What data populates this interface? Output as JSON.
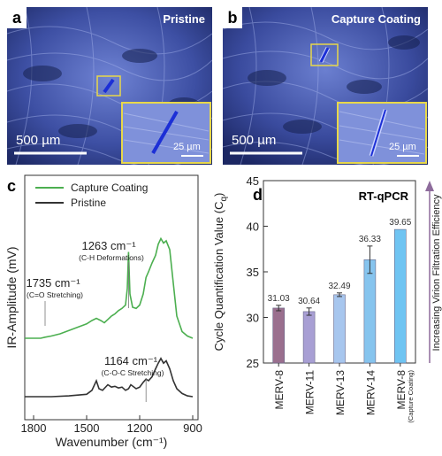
{
  "panel_a": {
    "letter": "a",
    "title": "Pristine",
    "scalebar": "500 µm",
    "inset_scalebar": "25 µm"
  },
  "panel_b": {
    "letter": "b",
    "title": "Capture Coating",
    "scalebar": "500 µm",
    "inset_scalebar": "25 µm"
  },
  "colors": {
    "capture": "#4caf50",
    "pristine": "#333333",
    "micro_bg": "#3d4fa3",
    "inset_border": "#e8d84a",
    "fiber": "#1c2fd6"
  },
  "chart_data": [
    {
      "type": "line",
      "panel": "c",
      "xlabel": "Wavenumber (cm⁻¹)",
      "ylabel": "IR-Amplitude (mV)",
      "xlim": [
        1850,
        870
      ],
      "x_ticks": [
        "1800",
        "1500",
        "1200",
        "900"
      ],
      "legend": [
        "Capture Coating",
        "Pristine"
      ],
      "legend_position": "top-left",
      "annotations": [
        {
          "label": "1263 cm⁻¹",
          "sub": "(C-H Deformations)"
        },
        {
          "label": "1735 cm⁻¹",
          "sub": "(C=O Stretching)"
        },
        {
          "label": "1164 cm⁻¹",
          "sub": "(C-O-C Stretching)"
        }
      ],
      "series": [
        {
          "name": "Capture Coating",
          "x": [
            1850,
            1760,
            1735,
            1700,
            1650,
            1600,
            1550,
            1500,
            1470,
            1445,
            1420,
            1400,
            1380,
            1360,
            1340,
            1320,
            1300,
            1280,
            1270,
            1263,
            1255,
            1240,
            1220,
            1200,
            1180,
            1164,
            1150,
            1130,
            1110,
            1095,
            1080,
            1065,
            1050,
            1030,
            1010,
            990,
            960,
            930,
            900
          ],
          "y": [
            0.0,
            0.0,
            0.01,
            0.02,
            0.04,
            0.07,
            0.1,
            0.13,
            0.16,
            0.18,
            0.16,
            0.14,
            0.17,
            0.2,
            0.22,
            0.25,
            0.27,
            0.3,
            0.45,
            0.78,
            0.4,
            0.28,
            0.27,
            0.3,
            0.4,
            0.55,
            0.6,
            0.68,
            0.75,
            0.85,
            0.9,
            0.86,
            0.88,
            0.8,
            0.5,
            0.2,
            0.06,
            0.02,
            0.0
          ]
        },
        {
          "name": "Pristine",
          "x": [
            1850,
            1800,
            1700,
            1600,
            1500,
            1470,
            1445,
            1430,
            1410,
            1380,
            1360,
            1340,
            1320,
            1300,
            1280,
            1263,
            1250,
            1220,
            1200,
            1180,
            1164,
            1150,
            1130,
            1110,
            1095,
            1080,
            1065,
            1050,
            1030,
            1010,
            990,
            960,
            930,
            900
          ],
          "y": [
            0.0,
            0.0,
            0.0,
            0.01,
            0.03,
            0.08,
            0.2,
            0.1,
            0.08,
            0.15,
            0.12,
            0.13,
            0.11,
            0.12,
            0.08,
            0.1,
            0.15,
            0.1,
            0.12,
            0.18,
            0.22,
            0.2,
            0.25,
            0.35,
            0.42,
            0.48,
            0.42,
            0.45,
            0.35,
            0.2,
            0.1,
            0.04,
            0.01,
            0.0
          ]
        }
      ]
    },
    {
      "type": "bar",
      "panel": "d",
      "title": "RT-qPCR",
      "ylabel": "Cycle Quantification Value (C",
      "ylabel_sub": "q",
      "ylabel_close": ")",
      "ylim": [
        25,
        45
      ],
      "y_ticks": [
        25,
        30,
        35,
        40,
        45
      ],
      "categories": [
        "MERV-8",
        "MERV-11",
        "MERV-13",
        "MERV-14",
        "MERV-8"
      ],
      "category_sub": [
        "",
        "",
        "",
        "",
        "(Capture Coating)"
      ],
      "values": [
        31.03,
        30.64,
        32.49,
        36.33,
        39.65
      ],
      "value_labels": [
        "31.03",
        "30.64",
        "32.49",
        "36.33",
        "39.65"
      ],
      "errors": [
        0.3,
        0.4,
        0.2,
        1.5,
        0.0
      ],
      "bar_colors": [
        "#9a6f8e",
        "#a89fd4",
        "#a7c6ee",
        "#86c4ee",
        "#6fc4f2"
      ],
      "side_label": "Increasing Virion Filtration Efficiency"
    }
  ]
}
